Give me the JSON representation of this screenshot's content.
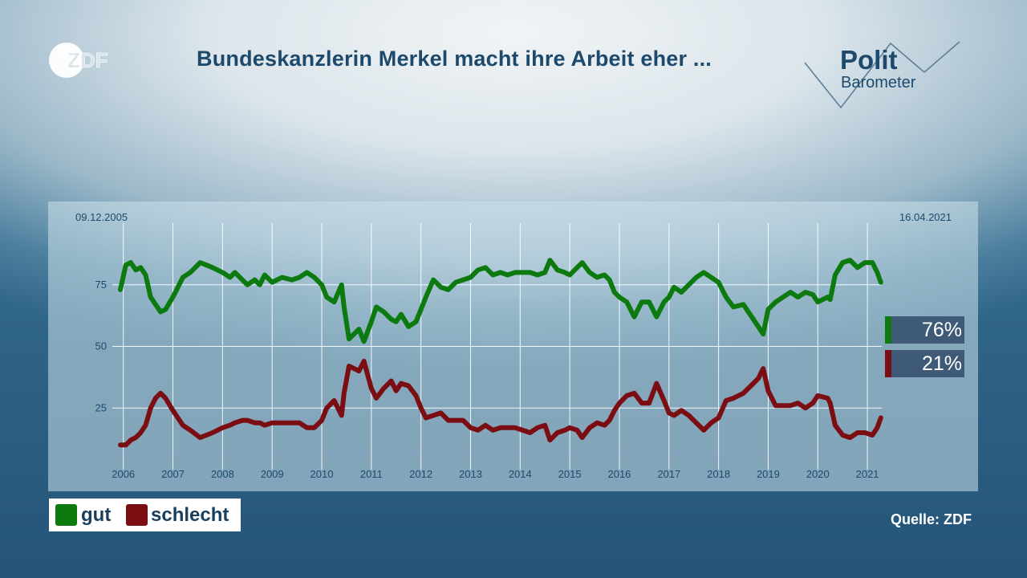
{
  "header": {
    "title": "Bundeskanzlerin Merkel macht ihre Arbeit eher ...",
    "broadcaster_logo": "ZDF",
    "program_logo_line1": "Polit",
    "program_logo_line2": "Barometer"
  },
  "footer": {
    "source": "Quelle: ZDF"
  },
  "legend": [
    {
      "label": "gut",
      "color": "#0d7a10"
    },
    {
      "label": "schlecht",
      "color": "#7a0e12"
    }
  ],
  "end_values": [
    {
      "label": "76%",
      "color": "#0d7a10"
    },
    {
      "label": "21%",
      "color": "#7a0e12"
    }
  ],
  "chart_data": {
    "type": "line",
    "title": "Bundeskanzlerin Merkel macht ihre Arbeit eher ...",
    "start_label": "09.12.2005",
    "end_label": "16.04.2021",
    "xlim": [
      2005.94,
      2021.29
    ],
    "ylim": [
      0,
      100
    ],
    "yticks": [
      25,
      50,
      75
    ],
    "xticks": [
      2006,
      2007,
      2008,
      2009,
      2010,
      2011,
      2012,
      2013,
      2014,
      2015,
      2016,
      2017,
      2018,
      2019,
      2020,
      2021
    ],
    "grid": true,
    "series": [
      {
        "name": "gut",
        "color": "#0d7a10",
        "x": [
          2005.94,
          2006.05,
          2006.15,
          2006.25,
          2006.35,
          2006.45,
          2006.55,
          2006.65,
          2006.75,
          2006.85,
          2007.0,
          2007.2,
          2007.35,
          2007.55,
          2007.8,
          2008.0,
          2008.15,
          2008.25,
          2008.4,
          2008.5,
          2008.65,
          2008.75,
          2008.85,
          2009.0,
          2009.2,
          2009.4,
          2009.55,
          2009.7,
          2009.85,
          2010.0,
          2010.1,
          2010.25,
          2010.4,
          2010.45,
          2010.55,
          2010.65,
          2010.75,
          2010.85,
          2011.0,
          2011.1,
          2011.25,
          2011.4,
          2011.5,
          2011.6,
          2011.75,
          2011.9,
          2012.0,
          2012.1,
          2012.25,
          2012.4,
          2012.55,
          2012.7,
          2012.85,
          2013.0,
          2013.15,
          2013.3,
          2013.45,
          2013.6,
          2013.75,
          2013.9,
          2014.05,
          2014.2,
          2014.35,
          2014.5,
          2014.6,
          2014.75,
          2014.9,
          2015.0,
          2015.15,
          2015.25,
          2015.4,
          2015.55,
          2015.7,
          2015.8,
          2015.9,
          2016.0,
          2016.15,
          2016.3,
          2016.45,
          2016.6,
          2016.75,
          2016.9,
          2017.0,
          2017.1,
          2017.25,
          2017.4,
          2017.55,
          2017.7,
          2017.85,
          2018.0,
          2018.15,
          2018.3,
          2018.5,
          2018.7,
          2018.8,
          2018.9,
          2019.0,
          2019.15,
          2019.3,
          2019.45,
          2019.6,
          2019.75,
          2019.9,
          2020.0,
          2020.2,
          2020.25,
          2020.35,
          2020.5,
          2020.65,
          2020.8,
          2020.95,
          2021.1,
          2021.2,
          2021.27
        ],
        "y": [
          73,
          83,
          84,
          81,
          82,
          79,
          70,
          67,
          64,
          65,
          70,
          78,
          80,
          84,
          82,
          80,
          78,
          80,
          77,
          75,
          77,
          75,
          79,
          76,
          78,
          77,
          78,
          80,
          78,
          75,
          70,
          68,
          75,
          66,
          53,
          55,
          57,
          52,
          60,
          66,
          64,
          61,
          60,
          63,
          58,
          60,
          65,
          70,
          77,
          74,
          73,
          76,
          77,
          78,
          81,
          82,
          79,
          80,
          79,
          80,
          80,
          80,
          79,
          80,
          85,
          81,
          80,
          79,
          82,
          84,
          80,
          78,
          79,
          77,
          72,
          70,
          68,
          62,
          68,
          68,
          62,
          68,
          70,
          74,
          72,
          75,
          78,
          80,
          78,
          76,
          70,
          66,
          67,
          61,
          58,
          55,
          65,
          68,
          70,
          72,
          70,
          72,
          71,
          68,
          70,
          69,
          79,
          84,
          85,
          82,
          84,
          84,
          80,
          76
        ]
      },
      {
        "name": "schlecht",
        "color": "#7a0e12",
        "x": [
          2005.94,
          2006.05,
          2006.15,
          2006.25,
          2006.35,
          2006.45,
          2006.55,
          2006.65,
          2006.75,
          2006.85,
          2007.0,
          2007.2,
          2007.35,
          2007.55,
          2007.8,
          2008.0,
          2008.15,
          2008.25,
          2008.4,
          2008.5,
          2008.65,
          2008.75,
          2008.85,
          2009.0,
          2009.2,
          2009.4,
          2009.55,
          2009.7,
          2009.85,
          2010.0,
          2010.1,
          2010.25,
          2010.4,
          2010.45,
          2010.55,
          2010.65,
          2010.75,
          2010.85,
          2011.0,
          2011.1,
          2011.25,
          2011.4,
          2011.5,
          2011.6,
          2011.75,
          2011.9,
          2012.0,
          2012.1,
          2012.25,
          2012.4,
          2012.55,
          2012.7,
          2012.85,
          2013.0,
          2013.15,
          2013.3,
          2013.45,
          2013.6,
          2013.75,
          2013.9,
          2014.05,
          2014.2,
          2014.35,
          2014.5,
          2014.6,
          2014.75,
          2014.9,
          2015.0,
          2015.15,
          2015.25,
          2015.4,
          2015.55,
          2015.7,
          2015.8,
          2015.9,
          2016.0,
          2016.15,
          2016.3,
          2016.45,
          2016.6,
          2016.75,
          2016.9,
          2017.0,
          2017.1,
          2017.25,
          2017.4,
          2017.55,
          2017.7,
          2017.85,
          2018.0,
          2018.15,
          2018.3,
          2018.5,
          2018.7,
          2018.8,
          2018.9,
          2019.0,
          2019.15,
          2019.3,
          2019.45,
          2019.6,
          2019.75,
          2019.9,
          2020.0,
          2020.2,
          2020.25,
          2020.35,
          2020.5,
          2020.65,
          2020.8,
          2020.95,
          2021.1,
          2021.2,
          2021.27
        ],
        "y": [
          10,
          10,
          12,
          13,
          15,
          18,
          25,
          29,
          31,
          29,
          24,
          18,
          16,
          13,
          15,
          17,
          18,
          19,
          20,
          20,
          19,
          19,
          18,
          19,
          19,
          19,
          19,
          17,
          17,
          20,
          25,
          28,
          22,
          31,
          42,
          41,
          40,
          44,
          33,
          29,
          33,
          36,
          32,
          35,
          34,
          30,
          25,
          21,
          22,
          23,
          20,
          20,
          20,
          17,
          16,
          18,
          16,
          17,
          17,
          17,
          16,
          15,
          17,
          18,
          12,
          15,
          16,
          17,
          16,
          13,
          17,
          19,
          18,
          20,
          24,
          27,
          30,
          31,
          27,
          27,
          35,
          28,
          23,
          22,
          24,
          22,
          19,
          16,
          19,
          21,
          28,
          29,
          31,
          35,
          37,
          41,
          32,
          26,
          26,
          26,
          27,
          25,
          27,
          30,
          29,
          27,
          18,
          14,
          13,
          15,
          15,
          14,
          17,
          21
        ]
      }
    ]
  }
}
